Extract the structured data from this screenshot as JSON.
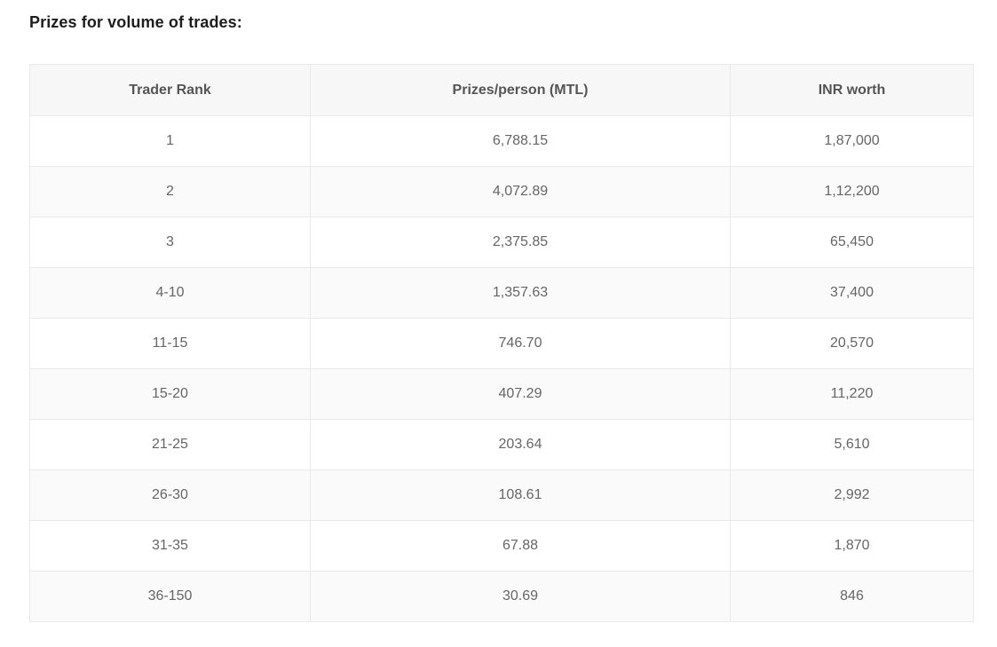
{
  "page": {
    "title": "Prizes for volume of trades:"
  },
  "table": {
    "columns": [
      "Trader Rank",
      "Prizes/person (MTL)",
      "INR worth"
    ],
    "rows": [
      {
        "trader_rank": "1",
        "prizes_per_person_mtl": "6,788.15",
        "inr_worth": "1,87,000"
      },
      {
        "trader_rank": "2",
        "prizes_per_person_mtl": "4,072.89",
        "inr_worth": "1,12,200"
      },
      {
        "trader_rank": "3",
        "prizes_per_person_mtl": "2,375.85",
        "inr_worth": "65,450"
      },
      {
        "trader_rank": "4-10",
        "prizes_per_person_mtl": "1,357.63",
        "inr_worth": "37,400"
      },
      {
        "trader_rank": "11-15",
        "prizes_per_person_mtl": "746.70",
        "inr_worth": "20,570"
      },
      {
        "trader_rank": "15-20",
        "prizes_per_person_mtl": "407.29",
        "inr_worth": "11,220"
      },
      {
        "trader_rank": "21-25",
        "prizes_per_person_mtl": "203.64",
        "inr_worth": "5,610"
      },
      {
        "trader_rank": "26-30",
        "prizes_per_person_mtl": "108.61",
        "inr_worth": "2,992"
      },
      {
        "trader_rank": "31-35",
        "prizes_per_person_mtl": "67.88",
        "inr_worth": "1,870"
      },
      {
        "trader_rank": "36-150",
        "prizes_per_person_mtl": "30.69",
        "inr_worth": "846"
      }
    ],
    "colors": {
      "header_bg": "#f7f7f7",
      "row_alt_bg": "#fafafa",
      "border": "#e9e9e9",
      "header_text": "#555555",
      "cell_text": "#666666",
      "title_text": "#1d1d1d"
    }
  }
}
